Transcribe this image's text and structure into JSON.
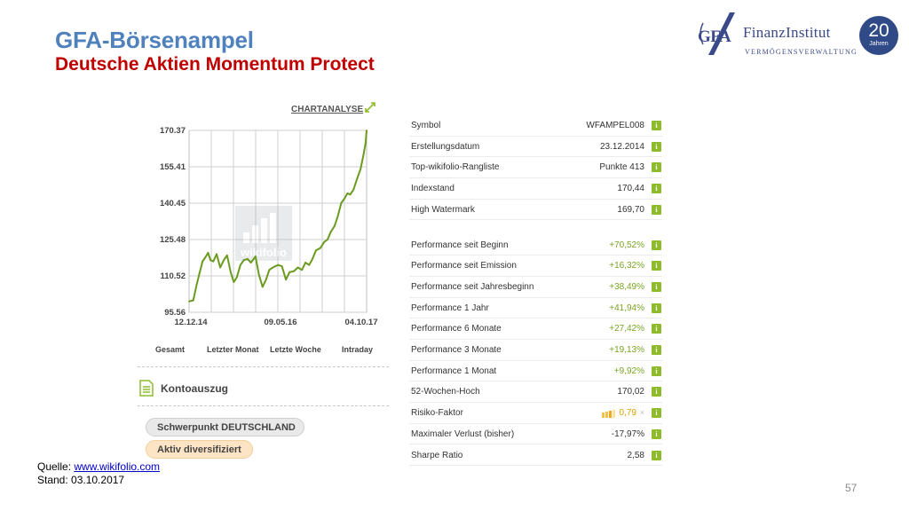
{
  "header": {
    "title": "GFA-Börsenampel",
    "subtitle": "Deutsche Aktien Momentum Protect"
  },
  "logo": {
    "mark_text": "GFA",
    "name": "FinanzInstitut",
    "tagline": "VERMÖGENSVERWALTUNG",
    "badge_number": "20",
    "badge_label": "Jahren"
  },
  "chart_section": {
    "link_label": "CHARTANALYSE",
    "watermark": "wikifolio",
    "range_tabs": [
      "Gesamt",
      "Letzter Monat",
      "Letzte Woche",
      "Intraday"
    ],
    "kontoauszug_label": "Kontoauszug",
    "focus_label": "Schwerpunkt DEUTSCHLAND",
    "diversification_label": "Aktiv diversifiziert"
  },
  "chart_data": {
    "type": "line",
    "title": "",
    "xlabel": "",
    "ylabel": "",
    "x_tick_labels": [
      "12.12.14",
      "09.05.16",
      "04.10.17"
    ],
    "y_tick_labels": [
      "170.37",
      "155.41",
      "140.45",
      "125.48",
      "110.52",
      "95.56"
    ],
    "ylim": [
      95.56,
      170.37
    ],
    "x_start": "2014-12-12",
    "x_end": "2017-10-04",
    "grid": true,
    "series": [
      {
        "color": "#6a9a1e",
        "points": [
          [
            "2014-12-12",
            100.0
          ],
          [
            "2015-01-05",
            100.5
          ],
          [
            "2015-01-25",
            107.0
          ],
          [
            "2015-02-10",
            111.5
          ],
          [
            "2015-02-28",
            116.5
          ],
          [
            "2015-03-15",
            118.0
          ],
          [
            "2015-04-01",
            120.0
          ],
          [
            "2015-04-15",
            117.0
          ],
          [
            "2015-05-01",
            116.5
          ],
          [
            "2015-05-20",
            119.5
          ],
          [
            "2015-06-10",
            114.0
          ],
          [
            "2015-07-01",
            117.0
          ],
          [
            "2015-07-20",
            119.0
          ],
          [
            "2015-08-10",
            112.0
          ],
          [
            "2015-08-28",
            108.0
          ],
          [
            "2015-09-15",
            110.0
          ],
          [
            "2015-10-05",
            115.0
          ],
          [
            "2015-10-25",
            117.0
          ],
          [
            "2015-11-15",
            117.5
          ],
          [
            "2015-12-05",
            116.0
          ],
          [
            "2015-12-31",
            118.5
          ],
          [
            "2016-01-20",
            111.0
          ],
          [
            "2016-02-10",
            106.0
          ],
          [
            "2016-03-01",
            109.0
          ],
          [
            "2016-03-20",
            113.0
          ],
          [
            "2016-04-10",
            114.0
          ],
          [
            "2016-05-09",
            115.0
          ],
          [
            "2016-06-01",
            114.5
          ],
          [
            "2016-06-24",
            109.0
          ],
          [
            "2016-07-15",
            112.0
          ],
          [
            "2016-08-10",
            112.5
          ],
          [
            "2016-09-01",
            114.0
          ],
          [
            "2016-09-25",
            113.0
          ],
          [
            "2016-10-15",
            116.0
          ],
          [
            "2016-11-05",
            115.0
          ],
          [
            "2016-11-25",
            117.5
          ],
          [
            "2016-12-15",
            121.0
          ],
          [
            "2017-01-10",
            122.0
          ],
          [
            "2017-02-01",
            124.5
          ],
          [
            "2017-02-20",
            125.5
          ],
          [
            "2017-03-10",
            128.5
          ],
          [
            "2017-04-01",
            131.0
          ],
          [
            "2017-04-20",
            135.0
          ],
          [
            "2017-05-10",
            140.5
          ],
          [
            "2017-05-30",
            142.5
          ],
          [
            "2017-06-15",
            144.5
          ],
          [
            "2017-07-01",
            144.0
          ],
          [
            "2017-07-20",
            146.0
          ],
          [
            "2017-08-10",
            150.5
          ],
          [
            "2017-08-30",
            154.5
          ],
          [
            "2017-09-15",
            160.0
          ],
          [
            "2017-09-28",
            165.0
          ],
          [
            "2017-10-04",
            170.37
          ]
        ]
      }
    ]
  },
  "stats": {
    "rows_top": [
      {
        "label": "Symbol",
        "value": "WFAMPEL008"
      },
      {
        "label": "Erstellungsdatum",
        "value": "23.12.2014"
      },
      {
        "label": "Top-wikifolio-Rangliste",
        "value": "Punkte 413"
      },
      {
        "label": "Indexstand",
        "value": "170,44"
      },
      {
        "label": "High Watermark",
        "value": "169,70"
      }
    ],
    "rows_perf": [
      {
        "label": "Performance seit Beginn",
        "value": "+70,52%"
      },
      {
        "label": "Performance seit Emission",
        "value": "+16,32%"
      },
      {
        "label": "Performance seit Jahresbeginn",
        "value": "+38,49%"
      },
      {
        "label": "Performance 1 Jahr",
        "value": "+41,94%"
      },
      {
        "label": "Performance 6 Monate",
        "value": "+27,42%"
      },
      {
        "label": "Performance 3 Monate",
        "value": "+19,13%"
      },
      {
        "label": "Performance 1 Monat",
        "value": "+9,92%"
      },
      {
        "label": "52-Wochen-Hoch",
        "value": "170,02"
      },
      {
        "label": "Risiko-Faktor",
        "value": "0,79",
        "close": "×"
      },
      {
        "label": "Maximaler Verlust (bisher)",
        "value": "-17,97%"
      },
      {
        "label": "Sharpe Ratio",
        "value": "2,58"
      }
    ],
    "info_glyph": "i",
    "positive_color": "#7ba321",
    "risk_color": "#e69d00"
  },
  "footer": {
    "source_prefix": "Quelle: ",
    "source_link": "www.wikifolio.com",
    "date_line": "Stand: 03.10.2017",
    "page_number": "57"
  }
}
